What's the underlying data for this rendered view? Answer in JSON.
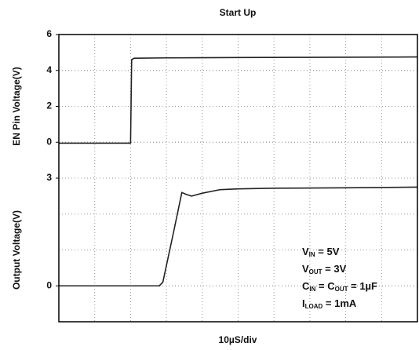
{
  "title": "Start Up",
  "xlabel": "10µS/div",
  "annotations": [
    [
      "V",
      "IN",
      " = 5V"
    ],
    [
      "V",
      "OUT",
      " = 3V"
    ],
    [
      "C",
      "IN",
      " = C",
      "OUT",
      " = 1µF"
    ],
    [
      "I",
      "LOAD",
      " = 1mA"
    ]
  ],
  "chart_data": [
    {
      "type": "line",
      "ylabel": "EN Pin Voltage(V)",
      "xlim": [
        0,
        100
      ],
      "ylim": [
        -2,
        6
      ],
      "yticks": [
        6,
        4,
        2,
        0
      ],
      "grid": true,
      "x": [
        0,
        20,
        20.3,
        21,
        30,
        50,
        70,
        100
      ],
      "series": [
        {
          "color": "#222222",
          "values": [
            -0.05,
            -0.05,
            4.6,
            4.68,
            4.7,
            4.72,
            4.73,
            4.75
          ]
        }
      ]
    },
    {
      "type": "line",
      "ylabel": "Output Voltage(V)",
      "xlim": [
        0,
        100
      ],
      "ylim": [
        -1,
        3
      ],
      "yticks": [
        3,
        0
      ],
      "grid": true,
      "x": [
        0,
        28,
        29,
        32,
        34.3,
        35.5,
        37,
        40,
        45,
        50,
        60,
        80,
        100
      ],
      "series": [
        {
          "color": "#222222",
          "values": [
            0,
            0,
            0.1,
            1.5,
            2.6,
            2.55,
            2.5,
            2.58,
            2.68,
            2.7,
            2.72,
            2.73,
            2.75
          ]
        }
      ]
    }
  ]
}
